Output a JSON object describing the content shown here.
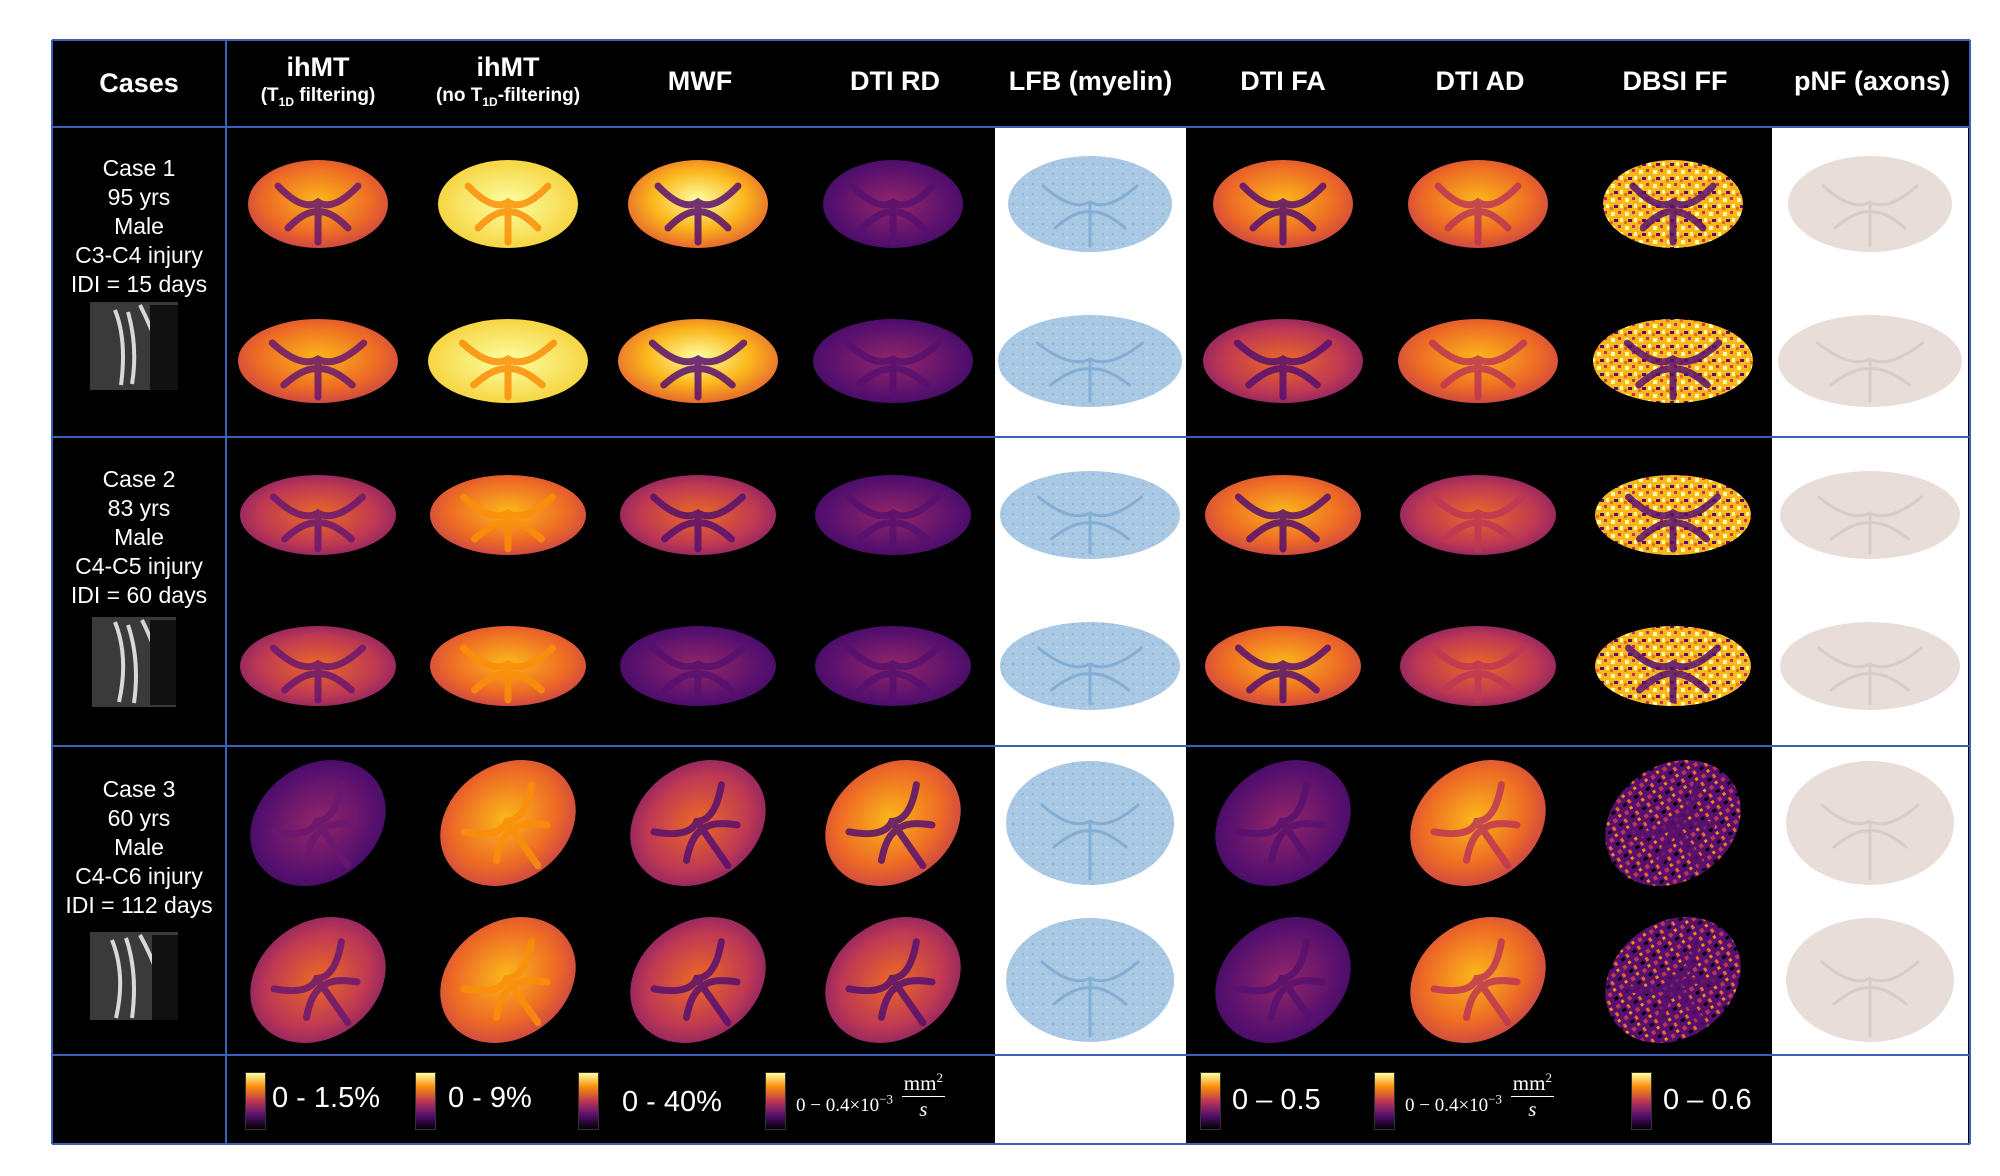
{
  "header": {
    "cases": "Cases",
    "columns": [
      {
        "title": "ihMT",
        "subtitle_pre": "(T",
        "subtitle_sub": "1D",
        "subtitle_post": " filtering)"
      },
      {
        "title": "ihMT",
        "subtitle_pre": "(no T",
        "subtitle_sub": "1D",
        "subtitle_post": "-filtering)"
      },
      {
        "title": "MWF"
      },
      {
        "title": "DTI RD"
      },
      {
        "title": "LFB (myelin)"
      },
      {
        "title": "DTI FA"
      },
      {
        "title": "DTI AD"
      },
      {
        "title": "DBSI FF"
      },
      {
        "title": "pNF (axons)"
      }
    ]
  },
  "cases": [
    {
      "lines": [
        "Case 1",
        "95 yrs",
        "Male",
        "C3-C4 injury",
        "IDI = 15 days"
      ]
    },
    {
      "lines": [
        "Case 2",
        "83 yrs",
        "Male",
        "C4-C5 injury",
        "IDI = 60 days"
      ]
    },
    {
      "lines": [
        "Case 3",
        "60 yrs",
        "Male",
        "C4-C6 injury",
        "IDI = 112 days"
      ]
    }
  ],
  "scales": {
    "ihmt_t1d": "0 - 1.5%",
    "ihmt_no": "0 - 9%",
    "mwf": "0 - 40%",
    "rd_prefix": "0 − 0.4×10",
    "rd_exp": "−3",
    "rd_unit_num": "mm",
    "rd_unit_exp": "2",
    "rd_unit_den": "s",
    "fa": "0 – 0.5",
    "ad_prefix": "0 − 0.4×10",
    "ad_exp": "−3",
    "ad_unit_num": "mm",
    "ad_unit_exp": "2",
    "ad_unit_den": "s",
    "ff": "0 – 0.6"
  },
  "colors": {
    "background": "#000000",
    "grid_line": "#3d5fb8",
    "lfb_tissue": "#a9c8e4",
    "pnf_tissue": "#e9ddd9",
    "colormap": [
      "#fcffa4",
      "#f98e09",
      "#bc3754",
      "#57106e",
      "#000004"
    ]
  }
}
